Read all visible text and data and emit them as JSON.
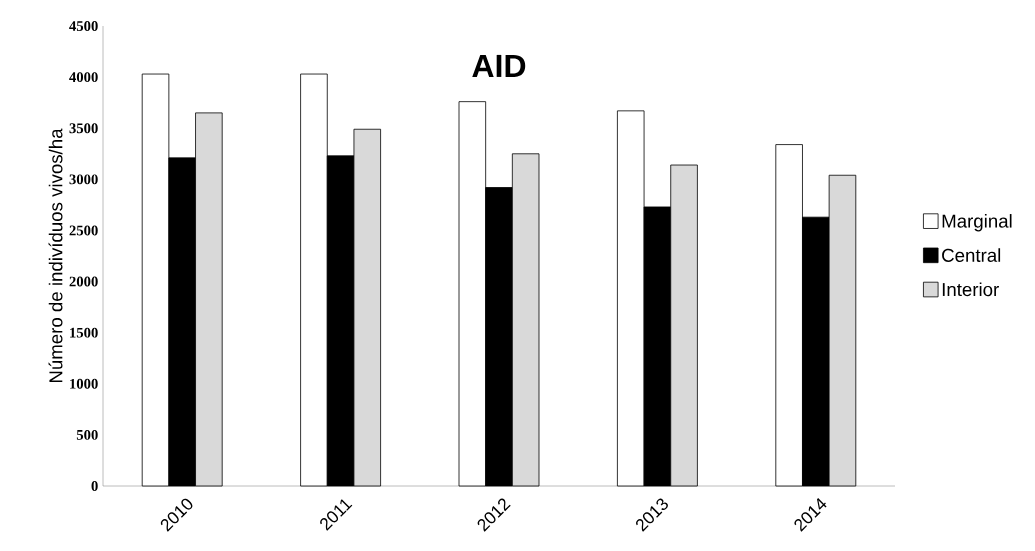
{
  "chart_data": {
    "type": "bar",
    "title": "AID",
    "ylabel": "Número de indivíduos vivos/ha",
    "categories": [
      "2010",
      "2011",
      "2012",
      "2013",
      "2014"
    ],
    "series": [
      {
        "name": "Marginal",
        "color": "#ffffff",
        "values": [
          4030,
          4030,
          3760,
          3670,
          3340
        ]
      },
      {
        "name": "Central",
        "color": "#000000",
        "values": [
          3210,
          3230,
          2920,
          2730,
          2630
        ]
      },
      {
        "name": "Interior",
        "color": "#d9d9d9",
        "values": [
          3650,
          3490,
          3250,
          3140,
          3040
        ]
      }
    ],
    "ylim": [
      0,
      4500
    ],
    "yticks": [
      0,
      500,
      1000,
      1500,
      2000,
      2500,
      3000,
      3500,
      4000,
      4500
    ],
    "legend": "right"
  }
}
